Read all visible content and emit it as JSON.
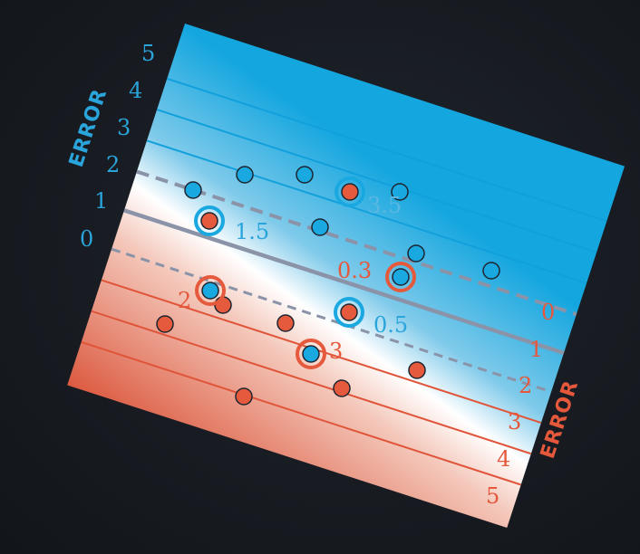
{
  "colors": {
    "blue": "#1aa8e0",
    "red": "#e5593c",
    "blue_text": "#2aa5dc",
    "red_text": "#e5583b",
    "boundary": "#8a93a8"
  },
  "axes": {
    "left_title": "ERROR",
    "right_title": "ERROR",
    "left_ticks": [
      "0",
      "1",
      "2",
      "3",
      "4",
      "5"
    ],
    "right_ticks": [
      "0",
      "1",
      "2",
      "3",
      "4",
      "5"
    ]
  },
  "annotations": [
    {
      "text": "3.5",
      "color": "blue"
    },
    {
      "text": "1.5",
      "color": "blue"
    },
    {
      "text": "0.3",
      "color": "red"
    },
    {
      "text": "2",
      "color": "red"
    },
    {
      "text": "0.5",
      "color": "blue"
    },
    {
      "text": "3",
      "color": "red"
    }
  ]
}
